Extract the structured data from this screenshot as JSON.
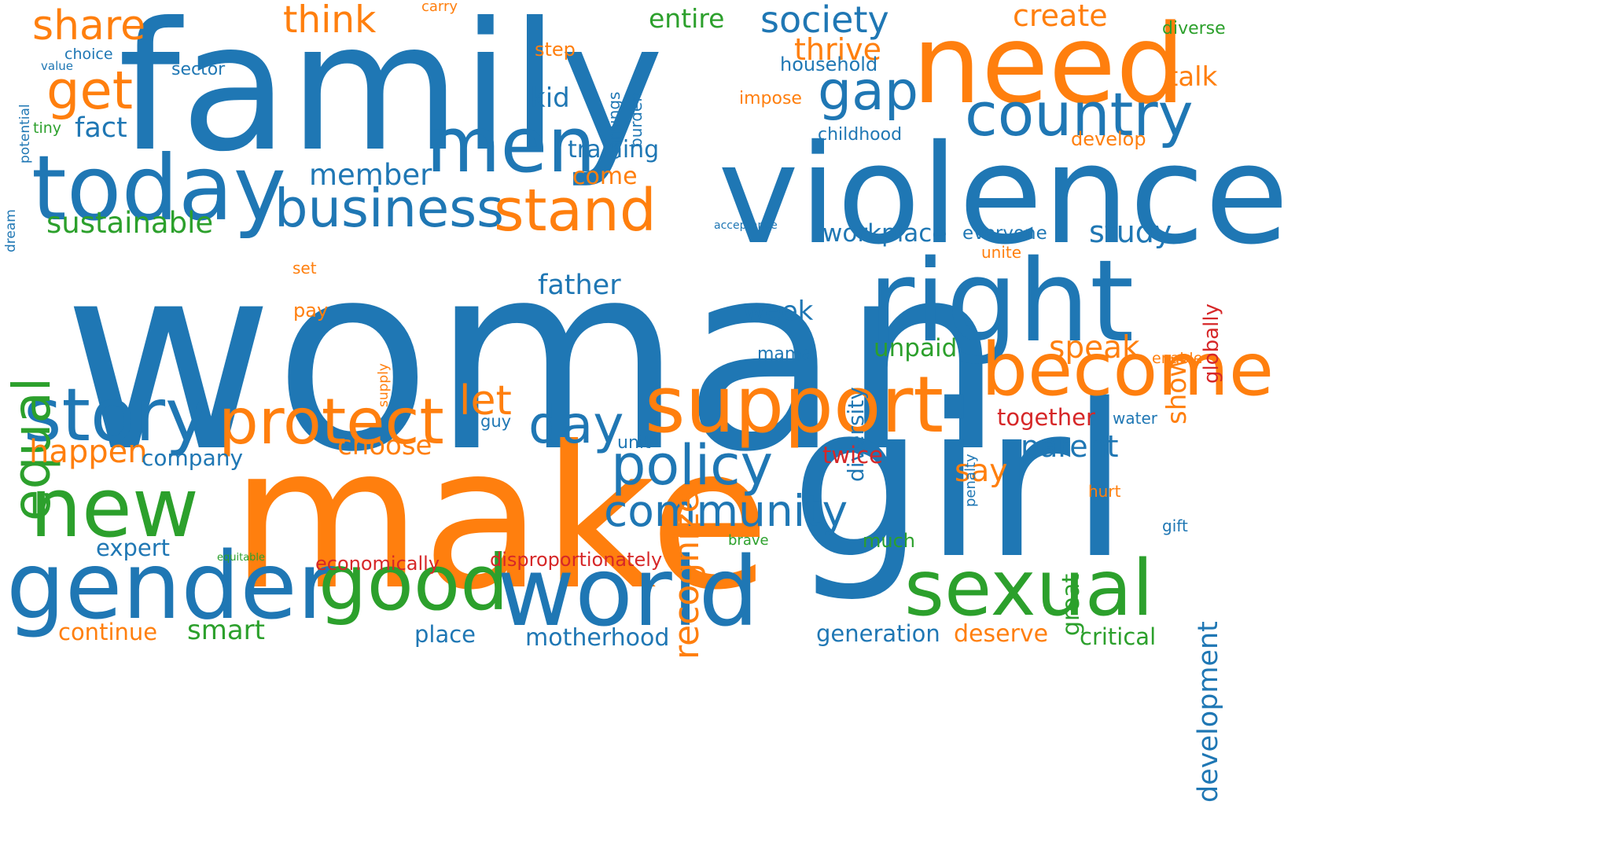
{
  "palette": {
    "blue": "#1f77b4",
    "orange": "#ff7f0e",
    "green": "#2ca02c",
    "red": "#d62728",
    "background": "#ffffff"
  },
  "words": [
    {
      "text": "woman",
      "color": "blue",
      "orientation": "horizontal"
    },
    {
      "text": "family",
      "color": "blue",
      "orientation": "horizontal"
    },
    {
      "text": "make",
      "color": "orange",
      "orientation": "horizontal"
    },
    {
      "text": "girl",
      "color": "blue",
      "orientation": "horizontal"
    },
    {
      "text": "violence",
      "color": "blue",
      "orientation": "horizontal"
    },
    {
      "text": "need",
      "color": "orange",
      "orientation": "horizontal"
    },
    {
      "text": "right",
      "color": "blue",
      "orientation": "horizontal"
    },
    {
      "text": "today",
      "color": "blue",
      "orientation": "horizontal"
    },
    {
      "text": "support",
      "color": "orange",
      "orientation": "horizontal"
    },
    {
      "text": "men",
      "color": "blue",
      "orientation": "horizontal"
    },
    {
      "text": "world",
      "color": "blue",
      "orientation": "horizontal"
    },
    {
      "text": "become",
      "color": "orange",
      "orientation": "horizontal"
    },
    {
      "text": "gender",
      "color": "blue",
      "orientation": "horizontal"
    },
    {
      "text": "new",
      "color": "green",
      "orientation": "horizontal"
    },
    {
      "text": "story",
      "color": "blue",
      "orientation": "horizontal"
    },
    {
      "text": "sexual",
      "color": "green",
      "orientation": "horizontal"
    },
    {
      "text": "good",
      "color": "green",
      "orientation": "horizontal"
    },
    {
      "text": "protect",
      "color": "orange",
      "orientation": "horizontal"
    },
    {
      "text": "business",
      "color": "blue",
      "orientation": "horizontal"
    },
    {
      "text": "stand",
      "color": "orange",
      "orientation": "horizontal"
    },
    {
      "text": "country",
      "color": "blue",
      "orientation": "horizontal"
    },
    {
      "text": "equal",
      "color": "green",
      "orientation": "vertical"
    },
    {
      "text": "policy",
      "color": "blue",
      "orientation": "horizontal"
    },
    {
      "text": "get",
      "color": "orange",
      "orientation": "horizontal"
    },
    {
      "text": "gap",
      "color": "blue",
      "orientation": "horizontal"
    },
    {
      "text": "day",
      "color": "blue",
      "orientation": "horizontal"
    },
    {
      "text": "community",
      "color": "blue",
      "orientation": "horizontal"
    },
    {
      "text": "society",
      "color": "blue",
      "orientation": "horizontal"
    },
    {
      "text": "share",
      "color": "orange",
      "orientation": "horizontal"
    },
    {
      "text": "recognize",
      "color": "orange",
      "orientation": "vertical"
    },
    {
      "text": "development",
      "color": "blue",
      "orientation": "vertical"
    },
    {
      "text": "think",
      "color": "orange",
      "orientation": "horizontal"
    },
    {
      "text": "create",
      "color": "orange",
      "orientation": "horizontal"
    },
    {
      "text": "thrive",
      "color": "orange",
      "orientation": "horizontal"
    },
    {
      "text": "talk",
      "color": "orange",
      "orientation": "horizontal"
    },
    {
      "text": "study",
      "color": "blue",
      "orientation": "horizontal"
    },
    {
      "text": "speak",
      "color": "orange",
      "orientation": "horizontal"
    },
    {
      "text": "show",
      "color": "orange",
      "orientation": "vertical"
    },
    {
      "text": "let",
      "color": "orange",
      "orientation": "horizontal"
    },
    {
      "text": "parent",
      "color": "blue",
      "orientation": "horizontal"
    },
    {
      "text": "great",
      "color": "green",
      "orientation": "vertical"
    },
    {
      "text": "happen",
      "color": "orange",
      "orientation": "horizontal"
    },
    {
      "text": "sustainable",
      "color": "green",
      "orientation": "horizontal"
    },
    {
      "text": "member",
      "color": "blue",
      "orientation": "horizontal"
    },
    {
      "text": "workplace",
      "color": "blue",
      "orientation": "horizontal"
    },
    {
      "text": "say",
      "color": "orange",
      "orientation": "horizontal"
    },
    {
      "text": "fact",
      "color": "blue",
      "orientation": "horizontal"
    },
    {
      "text": "kid",
      "color": "blue",
      "orientation": "horizontal"
    },
    {
      "text": "choose",
      "color": "orange",
      "orientation": "horizontal"
    },
    {
      "text": "father",
      "color": "blue",
      "orientation": "horizontal"
    },
    {
      "text": "week",
      "color": "blue",
      "orientation": "horizontal"
    },
    {
      "text": "diversity",
      "color": "blue",
      "orientation": "vertical"
    },
    {
      "text": "entire",
      "color": "green",
      "orientation": "horizontal"
    },
    {
      "text": "training",
      "color": "blue",
      "orientation": "horizontal"
    },
    {
      "text": "come",
      "color": "orange",
      "orientation": "horizontal"
    },
    {
      "text": "unpaid",
      "color": "green",
      "orientation": "horizontal"
    },
    {
      "text": "together",
      "color": "red",
      "orientation": "horizontal"
    },
    {
      "text": "twice",
      "color": "red",
      "orientation": "horizontal"
    },
    {
      "text": "globally",
      "color": "red",
      "orientation": "vertical"
    },
    {
      "text": "continue",
      "color": "orange",
      "orientation": "horizontal"
    },
    {
      "text": "smart",
      "color": "green",
      "orientation": "horizontal"
    },
    {
      "text": "expert",
      "color": "blue",
      "orientation": "horizontal"
    },
    {
      "text": "company",
      "color": "blue",
      "orientation": "horizontal"
    },
    {
      "text": "place",
      "color": "blue",
      "orientation": "horizontal"
    },
    {
      "text": "motherhood",
      "color": "blue",
      "orientation": "horizontal"
    },
    {
      "text": "generation",
      "color": "blue",
      "orientation": "horizontal"
    },
    {
      "text": "deserve",
      "color": "orange",
      "orientation": "horizontal"
    },
    {
      "text": "critical",
      "color": "green",
      "orientation": "horizontal"
    },
    {
      "text": "economically",
      "color": "red",
      "orientation": "horizontal"
    },
    {
      "text": "disproportionately",
      "color": "red",
      "orientation": "horizontal"
    },
    {
      "text": "much",
      "color": "green",
      "orientation": "horizontal"
    },
    {
      "text": "household",
      "color": "blue",
      "orientation": "horizontal"
    },
    {
      "text": "everyone",
      "color": "blue",
      "orientation": "horizontal"
    },
    {
      "text": "develop",
      "color": "orange",
      "orientation": "horizontal"
    },
    {
      "text": "impose",
      "color": "orange",
      "orientation": "horizontal"
    },
    {
      "text": "step",
      "color": "orange",
      "orientation": "horizontal"
    },
    {
      "text": "earnings",
      "color": "blue",
      "orientation": "vertical"
    },
    {
      "text": "burden",
      "color": "blue",
      "orientation": "vertical"
    },
    {
      "text": "childhood",
      "color": "blue",
      "orientation": "horizontal"
    },
    {
      "text": "mama",
      "color": "blue",
      "orientation": "horizontal"
    },
    {
      "text": "unit",
      "color": "blue",
      "orientation": "horizontal"
    },
    {
      "text": "guy",
      "color": "blue",
      "orientation": "horizontal"
    },
    {
      "text": "pay",
      "color": "orange",
      "orientation": "horizontal"
    },
    {
      "text": "set",
      "color": "orange",
      "orientation": "horizontal"
    },
    {
      "text": "supply",
      "color": "orange",
      "orientation": "vertical"
    },
    {
      "text": "unite",
      "color": "orange",
      "orientation": "horizontal"
    },
    {
      "text": "enable",
      "color": "orange",
      "orientation": "horizontal"
    },
    {
      "text": "hurt",
      "color": "orange",
      "orientation": "horizontal"
    },
    {
      "text": "water",
      "color": "blue",
      "orientation": "horizontal"
    },
    {
      "text": "penalty",
      "color": "blue",
      "orientation": "vertical"
    },
    {
      "text": "gift",
      "color": "blue",
      "orientation": "horizontal"
    },
    {
      "text": "brave",
      "color": "green",
      "orientation": "horizontal"
    },
    {
      "text": "diverse",
      "color": "green",
      "orientation": "horizontal"
    },
    {
      "text": "carry",
      "color": "orange",
      "orientation": "horizontal"
    },
    {
      "text": "sector",
      "color": "blue",
      "orientation": "horizontal"
    },
    {
      "text": "choice",
      "color": "blue",
      "orientation": "horizontal"
    },
    {
      "text": "value",
      "color": "blue",
      "orientation": "horizontal"
    },
    {
      "text": "potential",
      "color": "blue",
      "orientation": "vertical"
    },
    {
      "text": "tiny",
      "color": "green",
      "orientation": "horizontal"
    },
    {
      "text": "dream",
      "color": "blue",
      "orientation": "vertical"
    },
    {
      "text": "acceptance",
      "color": "blue",
      "orientation": "horizontal"
    },
    {
      "text": "equitable",
      "color": "green",
      "orientation": "horizontal"
    }
  ]
}
